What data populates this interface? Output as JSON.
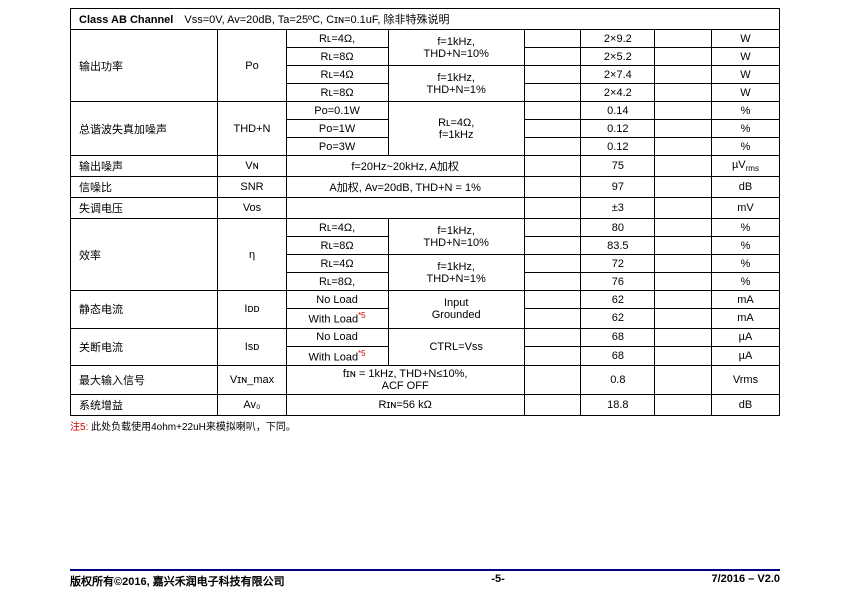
{
  "header": {
    "title": "Class AB Channel",
    "conditions": "Vss=0V, Av=20dB, Ta=25ºC, Cɪɴ=0.1uF,  除非特殊说明"
  },
  "rows": {
    "po": {
      "name": "输出功率",
      "symbol": "Po",
      "r1_cond": "Rʟ=4Ω,",
      "r1_f": "f=1kHz,",
      "r1_val": "2×9.2",
      "r1_unit": "W",
      "r2_cond": "Rʟ=8Ω",
      "r2_f": "THD+N=10%",
      "r2_val": "2×5.2",
      "r2_unit": "W",
      "r3_cond": "Rʟ=4Ω",
      "r3_f": "f=1kHz,",
      "r3_val": "2×7.4",
      "r3_unit": "W",
      "r4_cond": "Rʟ=8Ω",
      "r4_f": "THD+N=1%",
      "r4_val": "2×4.2",
      "r4_unit": "W"
    },
    "thdn": {
      "name": "总谐波失真加噪声",
      "symbol": "THD+N",
      "r1_cond": "Po=0.1W",
      "cond_all": "Rʟ=4Ω,\nf=1kHz",
      "r1_val": "0.14",
      "unit": "%",
      "r2_cond": "Po=1W",
      "r2_val": "0.12",
      "r3_cond": "Po=3W",
      "r3_val": "0.12"
    },
    "vn": {
      "name": "输出噪声",
      "symbol": "Vɴ",
      "cond": "f=20Hz~20kHz, A加权",
      "val": "75",
      "unit": "µVrms"
    },
    "snr": {
      "name": "信噪比",
      "symbol": "SNR",
      "cond": "A加权, Av=20dB, THD+N = 1%",
      "val": "97",
      "unit": "dB"
    },
    "vos": {
      "name": "失调电压",
      "symbol": "Vos",
      "cond": "",
      "val": "±3",
      "unit": "mV"
    },
    "eff": {
      "name": "效率",
      "symbol": "η",
      "r1_cond": "Rʟ=4Ω,",
      "f12_a": "f=1kHz,",
      "f12_b": "THD+N=10%",
      "r1_val": "80",
      "unit": "%",
      "r2_cond": "Rʟ=8Ω",
      "r2_val": "83.5",
      "r3_cond": "Rʟ=4Ω",
      "f34_a": "f=1kHz,",
      "f34_b": "THD+N=1%",
      "r3_val": "72",
      "r4_cond": "Rʟ=8Ω,",
      "r4_val": "76"
    },
    "idd": {
      "name": "静态电流",
      "symbol": "Iᴅᴅ",
      "r1_cond": "No Load",
      "cond_all": "Input\nGrounded",
      "r1_val": "62",
      "unit": "mA",
      "r2_cond_a": "With Load",
      "r2_cond_b": "*5",
      "r2_val": "62"
    },
    "isd": {
      "name": "关断电流",
      "symbol": "Isᴅ",
      "r1_cond": "No Load",
      "cond_all": "CTRL=Vss",
      "r1_val": "68",
      "unit": "µA",
      "r2_cond_a": "With Load",
      "r2_cond_b": "*5",
      "r2_val": "68"
    },
    "vin": {
      "name": "最大输入信号",
      "symbol": "Vɪɴ_max",
      "cond": "fɪɴ = 1kHz, THD+N≤10%,\nACF OFF",
      "val": "0.8",
      "unit": "Vrms"
    },
    "av": {
      "name": "系统增益",
      "symbol": "Av₀",
      "cond": "Rɪɴ=56 kΩ",
      "val": "18.8",
      "unit": "dB"
    }
  },
  "note": {
    "prefix": "注5:",
    "text": "此处负载使用4ohm+22uH来模拟喇叭，下同。"
  },
  "footer": {
    "left": "版权所有©2016,  嘉兴禾润电子科技有限公司",
    "center": "-5-",
    "right": "7/2016 – V2.0"
  }
}
